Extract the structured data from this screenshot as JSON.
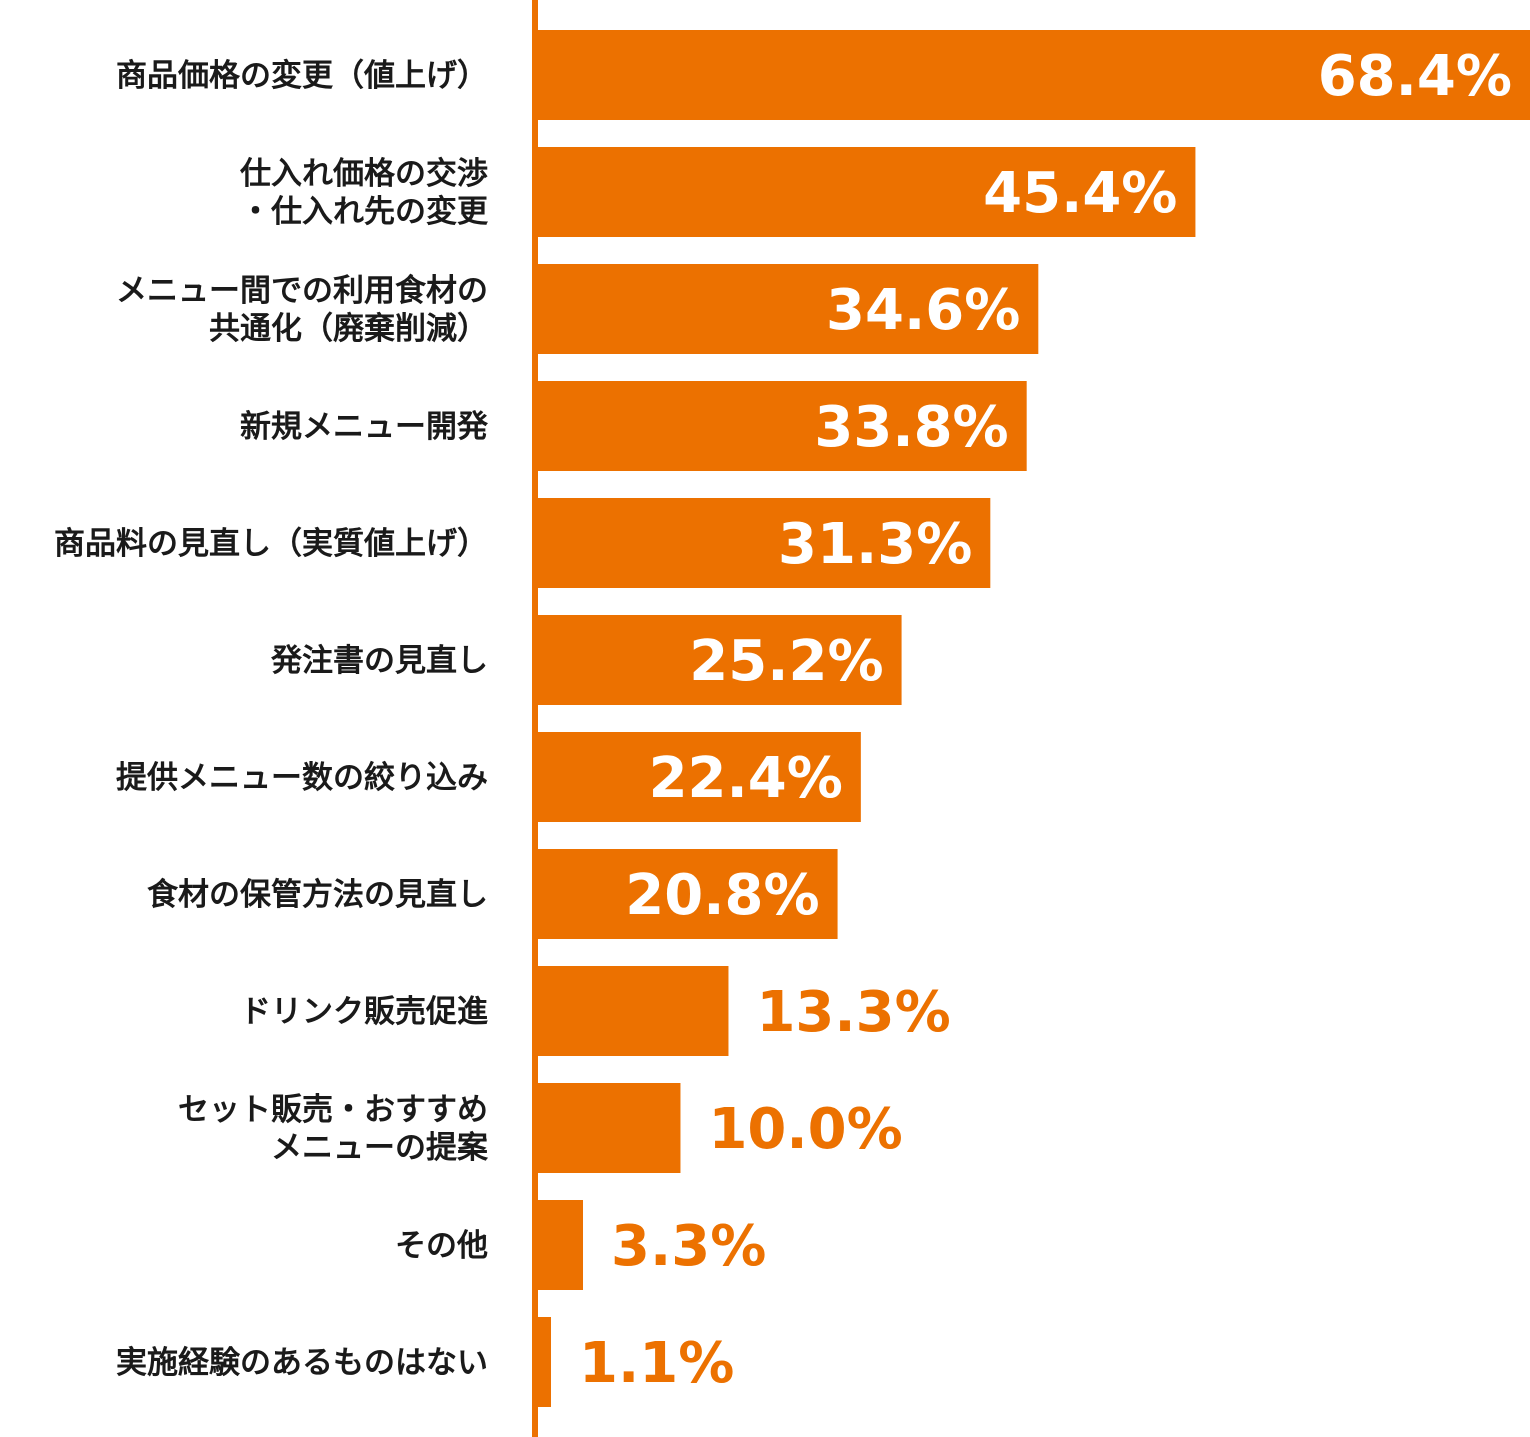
{
  "chart_data": {
    "type": "bar",
    "orientation": "horizontal",
    "categories": [
      [
        "商品価格の変更（値上げ）"
      ],
      [
        "仕入れ価格の交渉",
        "・仕入れ先の変更"
      ],
      [
        "メニュー間での利用食材の",
        "共通化（廃棄削減）"
      ],
      [
        "新規メニュー開発"
      ],
      [
        "商品料の見直し（実質値上げ）"
      ],
      [
        "発注書の見直し"
      ],
      [
        "提供メニュー数の絞り込み"
      ],
      [
        "食材の保管方法の見直し"
      ],
      [
        "ドリンク販売促進"
      ],
      [
        "セット販売・おすすめ",
        "メニューの提案"
      ],
      [
        "その他"
      ],
      [
        "実施経験のあるものはない"
      ]
    ],
    "values": [
      68.4,
      45.4,
      34.6,
      33.8,
      31.3,
      25.2,
      22.4,
      20.8,
      13.3,
      10.0,
      3.3,
      1.1
    ],
    "value_labels": [
      "68.4%",
      "45.4%",
      "34.6%",
      "33.8%",
      "31.3%",
      "25.2%",
      "22.4%",
      "20.8%",
      "13.3%",
      "10.0%",
      "3.3%",
      "1.1%"
    ],
    "xlim": [
      0,
      68.4
    ],
    "grid": false,
    "legend": "none",
    "colors": {
      "bar": "#ec7100",
      "label_inside": "#ffffff",
      "label_outside": "#ec7100",
      "axis": "#ec7100",
      "category_text": "#1a1a1a"
    }
  }
}
